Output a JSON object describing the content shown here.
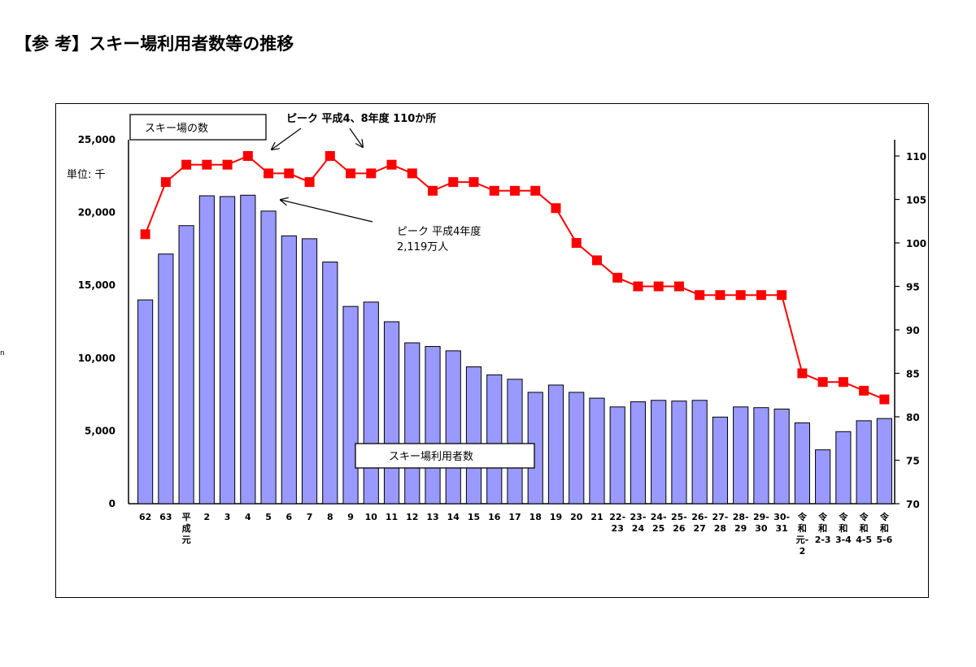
{
  "page": {
    "heading": "【参 考】スキー場利用者数等の推移",
    "stray_mark": "n"
  },
  "chart_data": {
    "type": "bar",
    "unit_label": "単位: 千",
    "categories": [
      [
        "62"
      ],
      [
        "63"
      ],
      [
        "平",
        "成",
        "元"
      ],
      [
        "2"
      ],
      [
        "3"
      ],
      [
        "4"
      ],
      [
        "5"
      ],
      [
        "6"
      ],
      [
        "7"
      ],
      [
        "8"
      ],
      [
        "9"
      ],
      [
        "10"
      ],
      [
        "11"
      ],
      [
        "12"
      ],
      [
        "13"
      ],
      [
        "14"
      ],
      [
        "15"
      ],
      [
        "16"
      ],
      [
        "17"
      ],
      [
        "18"
      ],
      [
        "19"
      ],
      [
        "20"
      ],
      [
        "21"
      ],
      [
        "22-",
        "23"
      ],
      [
        "23-",
        "24"
      ],
      [
        "24-",
        "25"
      ],
      [
        "25-",
        "26"
      ],
      [
        "26-",
        "27"
      ],
      [
        "27-",
        "28"
      ],
      [
        "28-",
        "29"
      ],
      [
        "29-",
        "30"
      ],
      [
        "30-",
        "31"
      ],
      [
        "令",
        "和",
        "元-",
        "2"
      ],
      [
        "令",
        "和",
        "2-3"
      ],
      [
        "令",
        "和",
        "3-4"
      ],
      [
        "令",
        "和",
        "4-5"
      ],
      [
        "令",
        "和",
        "5-6"
      ]
    ],
    "series": [
      {
        "name": "スキー場利用者数",
        "type": "bar",
        "axis": "left",
        "color": "#9999ff",
        "values": [
          14000,
          17150,
          19100,
          21150,
          21100,
          21190,
          20100,
          18400,
          18200,
          16600,
          13550,
          13850,
          12500,
          11050,
          10800,
          10500,
          9400,
          8850,
          8550,
          7650,
          8150,
          7650,
          7250,
          6650,
          7000,
          7100,
          7050,
          7100,
          5950,
          6650,
          6600,
          6500,
          5550,
          3700,
          4950,
          5700,
          5850
        ]
      },
      {
        "name": "スキー場の数",
        "type": "line",
        "axis": "right",
        "color": "#ff0000",
        "values": [
          101,
          107,
          109,
          109,
          109,
          110,
          108,
          108,
          107,
          110,
          108,
          108,
          109,
          108,
          106,
          107,
          107,
          106,
          106,
          106,
          104,
          100,
          98,
          96,
          95,
          95,
          95,
          94,
          94,
          94,
          94,
          94,
          85,
          84,
          84,
          83,
          82
        ]
      }
    ],
    "y_left": {
      "min": 0,
      "max": 25000,
      "ticks": [
        "0",
        "5,000",
        "10,000",
        "15,000",
        "20,000",
        "25,000"
      ]
    },
    "y_right": {
      "min": 70,
      "max": 110,
      "ticks": [
        "70",
        "75",
        "80",
        "85",
        "90",
        "95",
        "100",
        "105",
        "110"
      ]
    },
    "grid": false,
    "annotations": {
      "count_peak": "ピーク 平成4、8年度 110か所",
      "users_peak_line1": "ピーク 平成4年度",
      "users_peak_line2": "2,119万人"
    },
    "legend": {
      "facilities_box": "スキー場の数",
      "users_box": "スキー場利用者数"
    }
  }
}
